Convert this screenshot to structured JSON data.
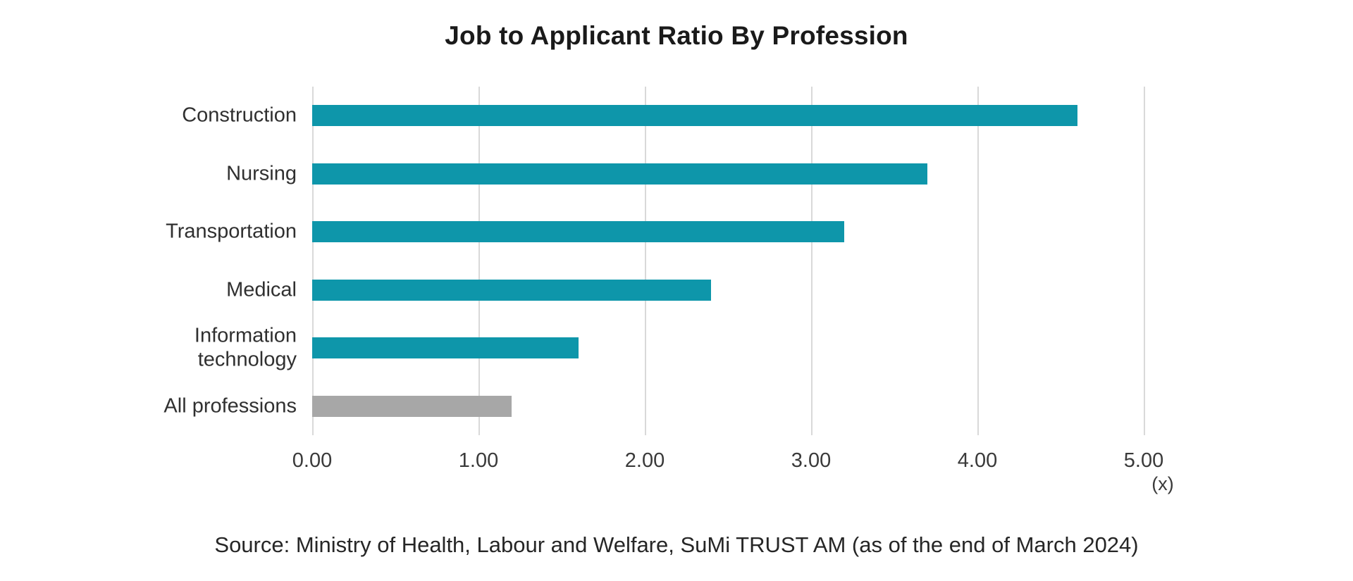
{
  "title": "Job to Applicant Ratio By Profession",
  "source": "Source: Ministry of Health, Labour and Welfare, SuMi TRUST AM (as of the end of March 2024)",
  "colors": {
    "bar_teal": "#0E96AA",
    "bar_gray": "#A7A7A7",
    "gridline": "#D9D9D9",
    "title_text": "#1A1A1A",
    "label_text": "#303030",
    "background": "#FFFFFF"
  },
  "chart_data": {
    "type": "bar",
    "orientation": "horizontal",
    "title": "Job to Applicant Ratio By Profession",
    "categories": [
      "Construction",
      "Nursing",
      "Transportation",
      "Medical",
      "Information technology",
      "All professions"
    ],
    "category_labels": [
      "Construction",
      "Nursing",
      "Transportation",
      "Medical",
      "Information\ntechnology",
      "All professions"
    ],
    "values": [
      4.6,
      3.7,
      3.2,
      2.4,
      1.6,
      1.2
    ],
    "bar_colors": [
      "#0E96AA",
      "#0E96AA",
      "#0E96AA",
      "#0E96AA",
      "#0E96AA",
      "#A7A7A7"
    ],
    "xlim": [
      0,
      5.33
    ],
    "xticks": [
      0,
      1,
      2,
      3,
      4,
      5
    ],
    "xtick_labels": [
      "0.00",
      "1.00",
      "2.00",
      "3.00",
      "4.00",
      "5.00"
    ],
    "unit_label": "(x)",
    "xlabel": "(x)",
    "ylabel": "",
    "grid": true,
    "legend": "none"
  }
}
